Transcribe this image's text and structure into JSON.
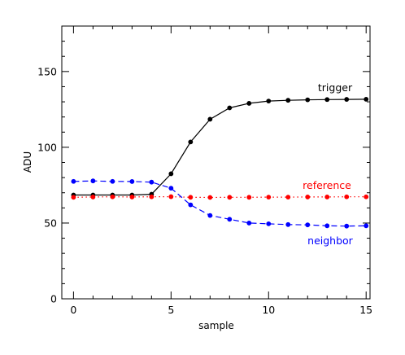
{
  "chart_data": {
    "type": "line",
    "xlabel": "sample",
    "ylabel": "ADU",
    "xlim": [
      -0.6,
      15.2
    ],
    "ylim": [
      0,
      180
    ],
    "xticks": [
      0,
      5,
      10,
      15
    ],
    "yticks": [
      0,
      50,
      100,
      150
    ],
    "x_minor_step": 1,
    "y_minor_step": 10,
    "grid": false,
    "legend": "none",
    "x": [
      0,
      1,
      2,
      3,
      4,
      5,
      6,
      7,
      8,
      9,
      10,
      11,
      12,
      13,
      14,
      15
    ],
    "series": [
      {
        "name": "trigger",
        "color": "#000000",
        "style": "solid",
        "values": [
          68.5,
          68.5,
          68.5,
          68.5,
          69.0,
          82.5,
          103.5,
          118.5,
          126.0,
          129.0,
          130.5,
          131.0,
          131.3,
          131.5,
          131.6,
          131.7
        ]
      },
      {
        "name": "reference",
        "color": "#ff0000",
        "style": "dotted",
        "values": [
          67.0,
          67.2,
          67.3,
          67.2,
          67.3,
          67.4,
          67.0,
          66.9,
          67.0,
          67.0,
          67.1,
          67.1,
          67.2,
          67.2,
          67.3,
          67.3
        ]
      },
      {
        "name": "neighbor",
        "color": "#0000ff",
        "style": "dashed",
        "values": [
          77.5,
          77.8,
          77.5,
          77.4,
          77.0,
          73.0,
          62.0,
          55.0,
          52.5,
          50.0,
          49.5,
          49.0,
          48.8,
          48.2,
          48.0,
          48.2
        ]
      }
    ]
  }
}
